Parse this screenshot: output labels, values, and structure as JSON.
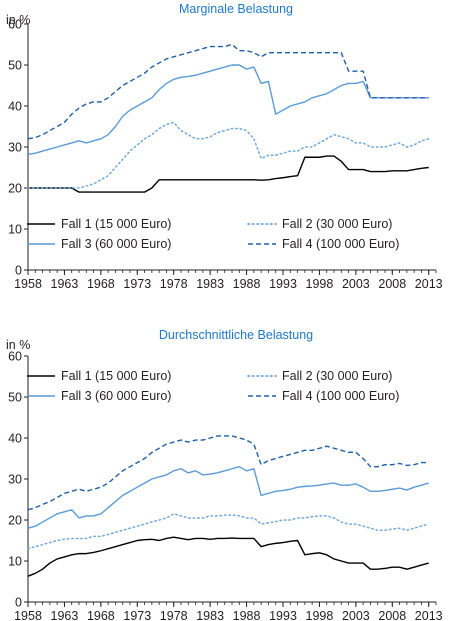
{
  "colors": {
    "fall1": "#000000",
    "fall2": "#6fa8dc",
    "fall3": "#5b9bd5",
    "fall4": "#1f5fa8",
    "title": "#1f78c8",
    "axis": "#231f20"
  },
  "chart_data": [
    {
      "type": "line",
      "title": "Marginale Belastung",
      "unit_label": "in %",
      "ylim": [
        0,
        60
      ],
      "yticks": [
        "0",
        "10",
        "20",
        "30",
        "40",
        "50",
        "60"
      ],
      "xlim": [
        1958,
        2014
      ],
      "xticks": [
        "1958",
        "1963",
        "1968",
        "1973",
        "1978",
        "1983",
        "1988",
        "1993",
        "1998",
        "2003",
        "2008",
        "2013"
      ],
      "grid": false,
      "legend_placement": "bottom-inside",
      "x": [
        1958,
        1959,
        1960,
        1961,
        1962,
        1963,
        1964,
        1965,
        1966,
        1967,
        1968,
        1969,
        1970,
        1971,
        1972,
        1973,
        1974,
        1975,
        1976,
        1977,
        1978,
        1979,
        1980,
        1981,
        1982,
        1983,
        1984,
        1985,
        1986,
        1987,
        1988,
        1989,
        1990,
        1991,
        1992,
        1993,
        1994,
        1995,
        1996,
        1997,
        1998,
        1999,
        2000,
        2001,
        2002,
        2003,
        2004,
        2005,
        2006,
        2007,
        2008,
        2009,
        2010,
        2011,
        2012,
        2013
      ],
      "series": [
        {
          "name": "Fall 1 (15 000 Euro)",
          "style": "solid",
          "colorKey": "fall1",
          "values": [
            20,
            20,
            20,
            20,
            20,
            20,
            20,
            19,
            19,
            19,
            19,
            19,
            19,
            19,
            19,
            19,
            19,
            20,
            22,
            22,
            22,
            22,
            22,
            22,
            22,
            22,
            22,
            22,
            22,
            22,
            22,
            22,
            21.9,
            22,
            22.3,
            22.5,
            22.8,
            23,
            27.5,
            27.5,
            27.5,
            27.8,
            27.8,
            26.5,
            24.5,
            24.5,
            24.5,
            24,
            24,
            24,
            24.2,
            24.2,
            24.2,
            24.5,
            24.8,
            25
          ]
        },
        {
          "name": "Fall 2 (30 000 Euro)",
          "style": "dotted",
          "colorKey": "fall2",
          "values": [
            20,
            20,
            20,
            20,
            20,
            20,
            20,
            20,
            20.5,
            21,
            22,
            23,
            25,
            27,
            29,
            30.5,
            32,
            33,
            34.5,
            35.5,
            36,
            34,
            33,
            32,
            32,
            32.5,
            33.5,
            34,
            34.5,
            34.5,
            34,
            32,
            27.2,
            28,
            28,
            28.5,
            29,
            29,
            30,
            30,
            31,
            32,
            33,
            32.5,
            32,
            31,
            31,
            30,
            30,
            30,
            30.5,
            31,
            30,
            30.5,
            31.5,
            32
          ]
        },
        {
          "name": "Fall 3 (60 000 Euro)",
          "style": "solid",
          "colorKey": "fall3",
          "values": [
            28.2,
            28.5,
            29,
            29.5,
            30,
            30.5,
            31,
            31.5,
            31,
            31.5,
            32,
            33,
            35,
            37.5,
            39,
            40,
            41,
            42,
            44,
            45.5,
            46.5,
            47,
            47.2,
            47.5,
            48,
            48.5,
            49,
            49.5,
            50,
            50,
            49,
            49.5,
            45.5,
            46,
            38,
            39,
            40,
            40.5,
            41,
            42,
            42.5,
            43,
            44,
            45,
            45.5,
            45.5,
            46,
            42,
            42,
            42,
            42,
            42,
            42,
            42,
            42,
            42
          ]
        },
        {
          "name": "Fall 4 (100 000 Euro)",
          "style": "dashed",
          "colorKey": "fall4",
          "values": [
            32,
            32.3,
            33,
            34,
            35,
            36,
            38,
            39.5,
            40.5,
            41,
            41,
            42,
            43.5,
            45,
            46,
            47,
            48,
            49.5,
            50.5,
            51.5,
            52,
            52.5,
            53,
            53.5,
            54,
            54.5,
            54.5,
            54.5,
            55,
            53.5,
            53.5,
            53,
            52,
            53,
            53,
            53,
            53,
            53,
            53,
            53,
            53,
            53,
            53,
            53,
            48.5,
            48.5,
            48.5,
            42,
            42,
            42,
            42,
            42,
            42,
            42,
            42,
            42
          ]
        }
      ]
    },
    {
      "type": "line",
      "title": "Durchschnittliche Belastung",
      "unit_label": "in %",
      "ylim": [
        0,
        60
      ],
      "yticks": [
        "0",
        "10",
        "20",
        "30",
        "40",
        "50",
        "60"
      ],
      "xlim": [
        1958,
        2014
      ],
      "xticks": [
        "1958",
        "1963",
        "1968",
        "1973",
        "1978",
        "1983",
        "1988",
        "1993",
        "1998",
        "2003",
        "2008",
        "2013"
      ],
      "grid": false,
      "legend_placement": "top-inside",
      "x": [
        1958,
        1959,
        1960,
        1961,
        1962,
        1963,
        1964,
        1965,
        1966,
        1967,
        1968,
        1969,
        1970,
        1971,
        1972,
        1973,
        1974,
        1975,
        1976,
        1977,
        1978,
        1979,
        1980,
        1981,
        1982,
        1983,
        1984,
        1985,
        1986,
        1987,
        1988,
        1989,
        1990,
        1991,
        1992,
        1993,
        1994,
        1995,
        1996,
        1997,
        1998,
        1999,
        2000,
        2001,
        2002,
        2003,
        2004,
        2005,
        2006,
        2007,
        2008,
        2009,
        2010,
        2011,
        2012,
        2013
      ],
      "series": [
        {
          "name": "Fall 1 (15 000 Euro)",
          "style": "solid",
          "colorKey": "fall1",
          "values": [
            6.3,
            7,
            8,
            9.5,
            10.5,
            11,
            11.5,
            11.8,
            11.8,
            12.1,
            12.5,
            13,
            13.5,
            14,
            14.5,
            15,
            15.2,
            15.3,
            15,
            15.5,
            15.8,
            15.5,
            15.2,
            15.5,
            15.5,
            15.3,
            15.5,
            15.5,
            15.6,
            15.5,
            15.5,
            15.5,
            13.5,
            14,
            14.3,
            14.5,
            14.8,
            15,
            11.5,
            11.8,
            12,
            11.5,
            10.5,
            10,
            9.5,
            9.5,
            9.5,
            8,
            8,
            8.2,
            8.5,
            8.5,
            8,
            8.5,
            9,
            9.5
          ]
        },
        {
          "name": "Fall 2 (30 000 Euro)",
          "style": "dotted",
          "colorKey": "fall2",
          "values": [
            13,
            13.5,
            14,
            14.5,
            15,
            15.3,
            15.5,
            15.5,
            15.5,
            16,
            16,
            16.5,
            17,
            17.5,
            18,
            18.5,
            19,
            19.5,
            20,
            20.5,
            21.5,
            21,
            20.5,
            20.5,
            20.5,
            21,
            21,
            21.2,
            21.2,
            21,
            20.5,
            20.5,
            19,
            19.3,
            19.6,
            20,
            20,
            20.5,
            20.5,
            20.8,
            21,
            21,
            20.5,
            19.5,
            19,
            19,
            18.5,
            18,
            17.5,
            17.5,
            17.8,
            18,
            17.5,
            18,
            18.5,
            19
          ]
        },
        {
          "name": "Fall 3 (60 000 Euro)",
          "style": "solid",
          "colorKey": "fall3",
          "values": [
            18,
            18.5,
            19.5,
            20.5,
            21.5,
            22,
            22.5,
            20.5,
            21,
            21,
            21.5,
            23,
            24.5,
            26,
            27,
            28,
            29,
            30,
            30.5,
            31,
            32,
            32.5,
            31.5,
            32,
            31,
            31.2,
            31.5,
            32,
            32.5,
            33,
            32,
            32.5,
            26,
            26.5,
            27,
            27.2,
            27.5,
            28,
            28.2,
            28.3,
            28.5,
            28.8,
            29,
            28.5,
            28.5,
            28.8,
            28,
            27,
            27,
            27.2,
            27.5,
            27.8,
            27.3,
            28,
            28.5,
            29
          ]
        },
        {
          "name": "Fall 4 (100 000 Euro)",
          "style": "dashed",
          "colorKey": "fall4",
          "values": [
            22.5,
            23,
            23.8,
            24.5,
            25.5,
            26.5,
            27,
            27.5,
            27,
            27.5,
            28,
            29,
            30.5,
            32,
            33,
            34,
            35,
            36.5,
            37.5,
            38.5,
            39,
            39.5,
            39,
            39.5,
            39.5,
            40,
            40.5,
            40.5,
            40.5,
            40,
            39.5,
            38.5,
            33.5,
            34.5,
            35,
            35.5,
            36,
            36.5,
            37,
            37,
            37.5,
            38,
            37.5,
            37,
            36.5,
            36.5,
            35,
            33,
            33,
            33.5,
            33.5,
            33.8,
            33.3,
            33.5,
            34,
            34
          ]
        }
      ]
    }
  ]
}
